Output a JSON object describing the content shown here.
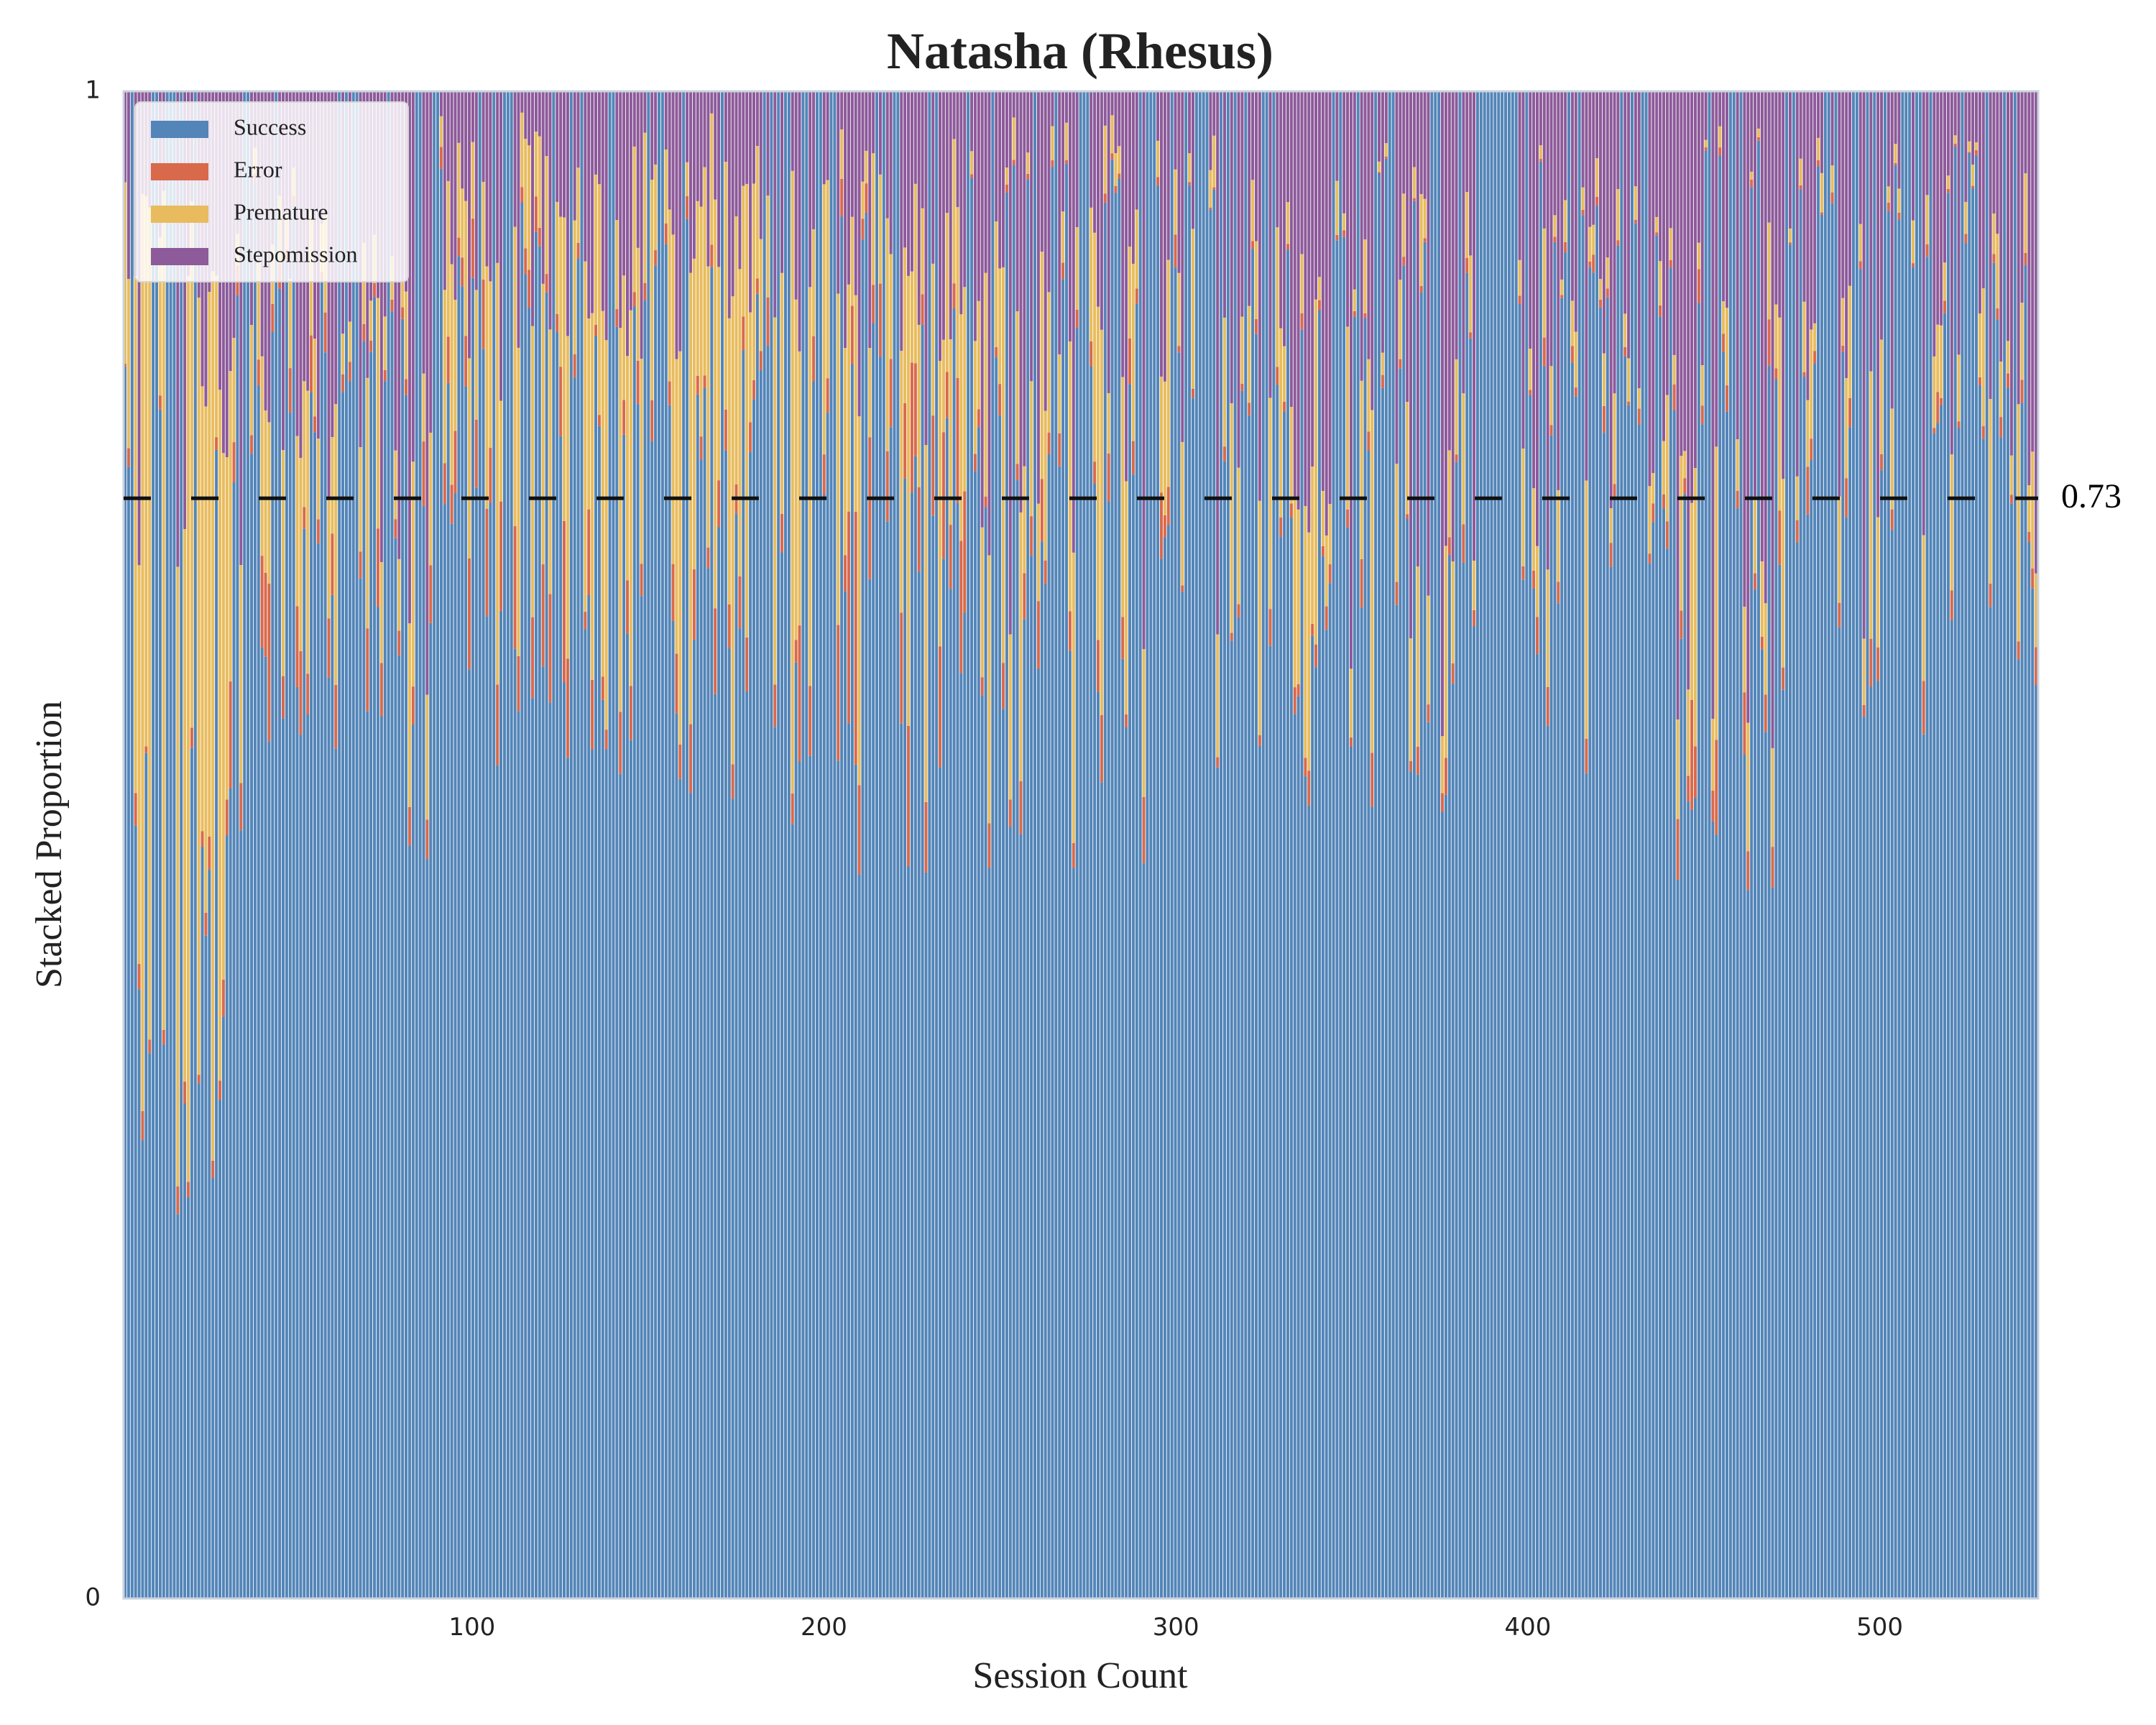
{
  "chart_data": {
    "type": "area",
    "title": "Natasha (Rhesus)",
    "xlabel": "Session Count",
    "ylabel": "Stacked Proportion",
    "xlim": [
      1,
      545
    ],
    "ylim": [
      0,
      1
    ],
    "xticks": [
      100,
      200,
      300,
      400,
      500
    ],
    "yticks": [
      0,
      1
    ],
    "grid": false,
    "legend_position": "top-left",
    "reference_line": {
      "value": 0.73,
      "label": "0.73",
      "style": "dashed",
      "color": "#111111"
    },
    "series": [
      {
        "name": "Success",
        "color": "#5385b8"
      },
      {
        "name": "Error",
        "color": "#d9694b"
      },
      {
        "name": "Premature",
        "color": "#e8bc5e"
      },
      {
        "name": "Stepomission",
        "color": "#8d5a9a"
      }
    ],
    "segments": [
      {
        "x_start": 1,
        "x_end": 30,
        "success": 0.55,
        "error": 0.01,
        "premature": 0.3,
        "stepomission": 0.14,
        "variability": 0.3
      },
      {
        "x_start": 31,
        "x_end": 60,
        "success": 0.72,
        "error": 0.03,
        "premature": 0.08,
        "stepomission": 0.17,
        "variability": 0.22
      },
      {
        "x_start": 61,
        "x_end": 90,
        "success": 0.7,
        "error": 0.02,
        "premature": 0.06,
        "stepomission": 0.22,
        "variability": 0.22
      },
      {
        "x_start": 91,
        "x_end": 130,
        "success": 0.75,
        "error": 0.04,
        "premature": 0.12,
        "stepomission": 0.09,
        "variability": 0.2
      },
      {
        "x_start": 131,
        "x_end": 160,
        "success": 0.74,
        "error": 0.02,
        "premature": 0.14,
        "stepomission": 0.1,
        "variability": 0.2
      },
      {
        "x_start": 161,
        "x_end": 200,
        "success": 0.7,
        "error": 0.03,
        "premature": 0.18,
        "stepomission": 0.09,
        "variability": 0.22
      },
      {
        "x_start": 201,
        "x_end": 240,
        "success": 0.7,
        "error": 0.06,
        "premature": 0.12,
        "stepomission": 0.12,
        "variability": 0.24
      },
      {
        "x_start": 241,
        "x_end": 300,
        "success": 0.72,
        "error": 0.02,
        "premature": 0.1,
        "stepomission": 0.16,
        "variability": 0.25
      },
      {
        "x_start": 301,
        "x_end": 340,
        "success": 0.7,
        "error": 0.01,
        "premature": 0.08,
        "stepomission": 0.21,
        "variability": 0.24
      },
      {
        "x_start": 341,
        "x_end": 385,
        "success": 0.74,
        "error": 0.01,
        "premature": 0.06,
        "stepomission": 0.19,
        "variability": 0.22
      },
      {
        "x_start": 386,
        "x_end": 397,
        "success": 1.0,
        "error": 0.0,
        "premature": 0.0,
        "stepomission": 0.0,
        "variability": 0.0
      },
      {
        "x_start": 398,
        "x_end": 440,
        "success": 0.76,
        "error": 0.01,
        "premature": 0.04,
        "stepomission": 0.19,
        "variability": 0.22
      },
      {
        "x_start": 441,
        "x_end": 470,
        "success": 0.72,
        "error": 0.02,
        "premature": 0.05,
        "stepomission": 0.21,
        "variability": 0.25
      },
      {
        "x_start": 471,
        "x_end": 545,
        "success": 0.77,
        "error": 0.01,
        "premature": 0.05,
        "stepomission": 0.17,
        "variability": 0.2
      }
    ]
  }
}
